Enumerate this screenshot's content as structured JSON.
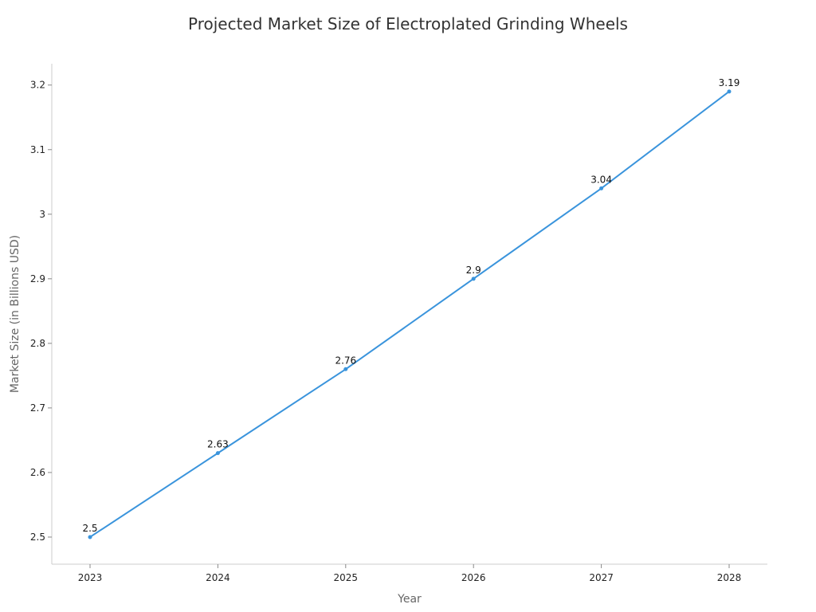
{
  "chart_data": {
    "type": "line",
    "title": "Projected Market Size of Electroplated Grinding Wheels",
    "xlabel": "Year",
    "ylabel": "Market Size (in Billions USD)",
    "categories": [
      "2023",
      "2024",
      "2025",
      "2026",
      "2027",
      "2028"
    ],
    "series": [
      {
        "values": [
          2.5,
          2.63,
          2.76,
          2.9,
          3.04,
          3.19
        ],
        "labels": [
          "2.5",
          "2.63",
          "2.76",
          "2.9",
          "3.04",
          "3.19"
        ]
      }
    ],
    "yticks": [
      2.5,
      2.6,
      2.7,
      2.8,
      2.9,
      3,
      3.1,
      3.2
    ],
    "ytick_labels": [
      "2.5",
      "2.6",
      "2.7",
      "2.8",
      "2.9",
      "3",
      "3.1",
      "3.2"
    ],
    "ylim": [
      2.458,
      3.233
    ],
    "grid": false,
    "legend": "none",
    "colors": {
      "line": "#3a94dc",
      "axis": "#cccccc",
      "title": "#333333"
    }
  }
}
